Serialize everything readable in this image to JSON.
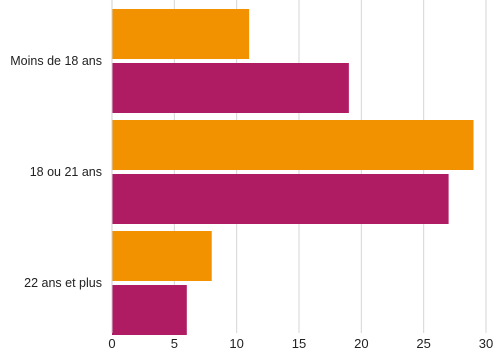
{
  "chart_data": {
    "type": "bar",
    "orientation": "horizontal",
    "categories": [
      "Moins de 18 ans",
      "18 ou 21 ans",
      "22 ans et plus"
    ],
    "series": [
      {
        "color": "#f39200",
        "values": [
          11,
          29,
          8
        ]
      },
      {
        "color": "#b01c64",
        "values": [
          19,
          27,
          6
        ]
      }
    ],
    "x_ticks": [
      "0",
      "5",
      "10",
      "15",
      "20",
      "25",
      "30"
    ],
    "xlim": [
      0,
      30
    ],
    "grid": true,
    "legend": "none"
  }
}
